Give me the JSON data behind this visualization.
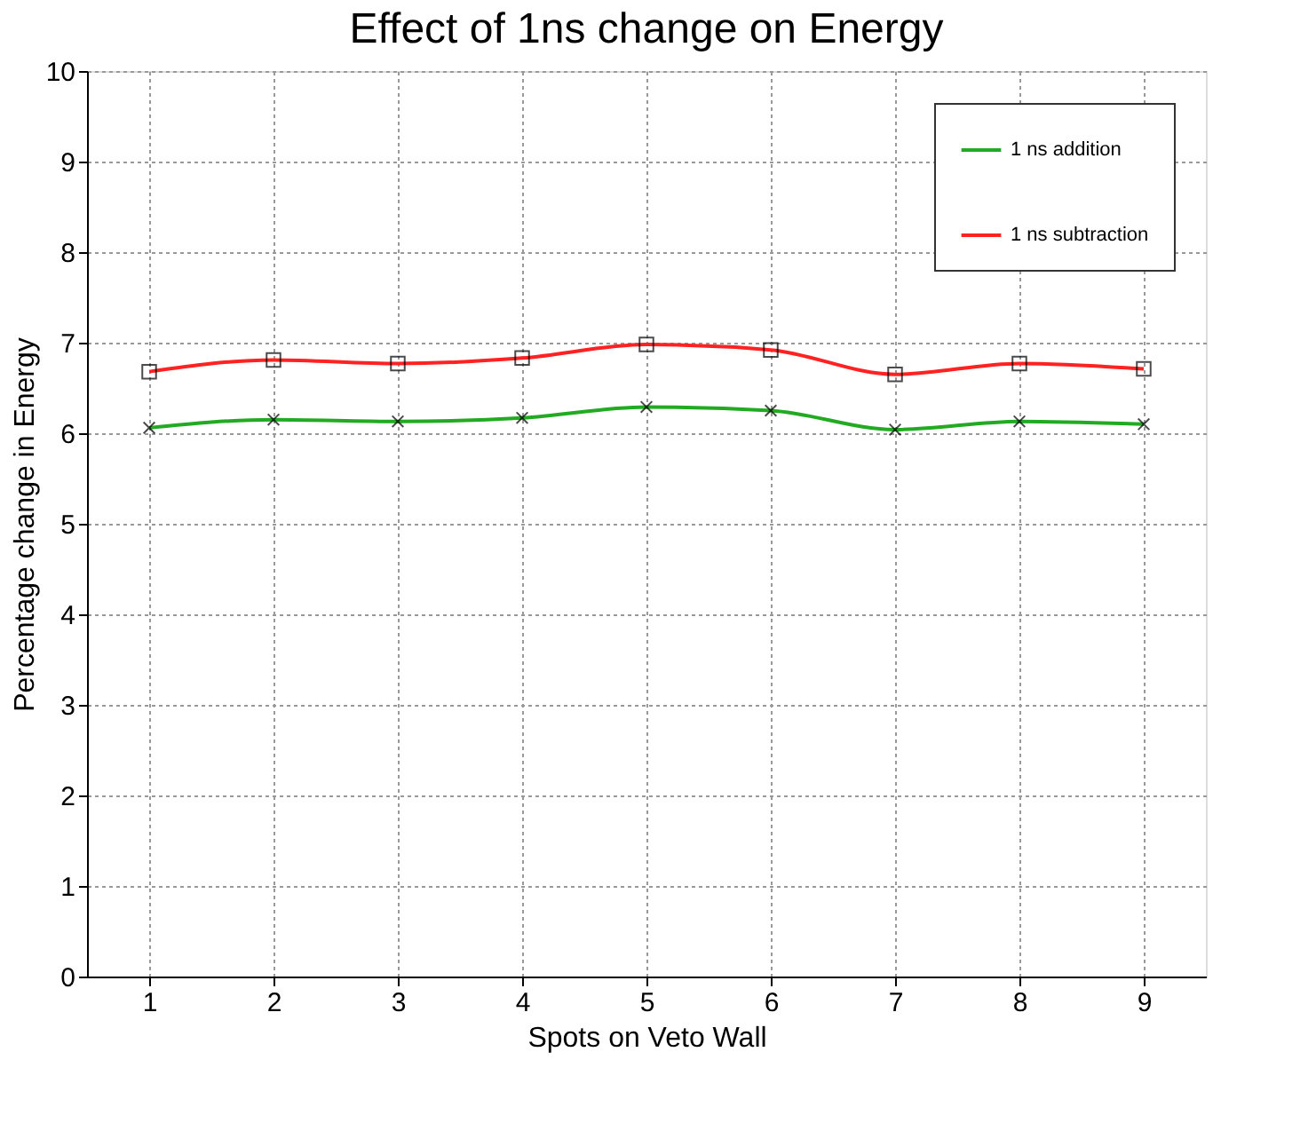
{
  "chart_data": {
    "type": "line",
    "title": "Effect of 1ns change on Energy",
    "xlabel": "Spots on Veto Wall",
    "ylabel": "Percentage change in Energy",
    "x": [
      1,
      2,
      3,
      4,
      5,
      6,
      7,
      8,
      9
    ],
    "series": [
      {
        "name": "1 ns addition",
        "color": "#22aa22",
        "marker": "cross",
        "values": [
          6.06,
          6.15,
          6.13,
          6.17,
          6.29,
          6.25,
          6.04,
          6.13,
          6.1
        ]
      },
      {
        "name": "1 ns subtraction",
        "color": "#ff2222",
        "marker": "square",
        "values": [
          6.68,
          6.81,
          6.77,
          6.83,
          6.98,
          6.92,
          6.65,
          6.77,
          6.71
        ]
      }
    ],
    "xlim": [
      0.5,
      9.5
    ],
    "xticks": [
      1,
      2,
      3,
      4,
      5,
      6,
      7,
      8,
      9
    ],
    "ylim": [
      0,
      10
    ],
    "yticks": [
      0,
      1,
      2,
      3,
      4,
      5,
      6,
      7,
      8,
      9,
      10
    ],
    "grid": true,
    "legend": "top right",
    "line_style": "solid"
  }
}
